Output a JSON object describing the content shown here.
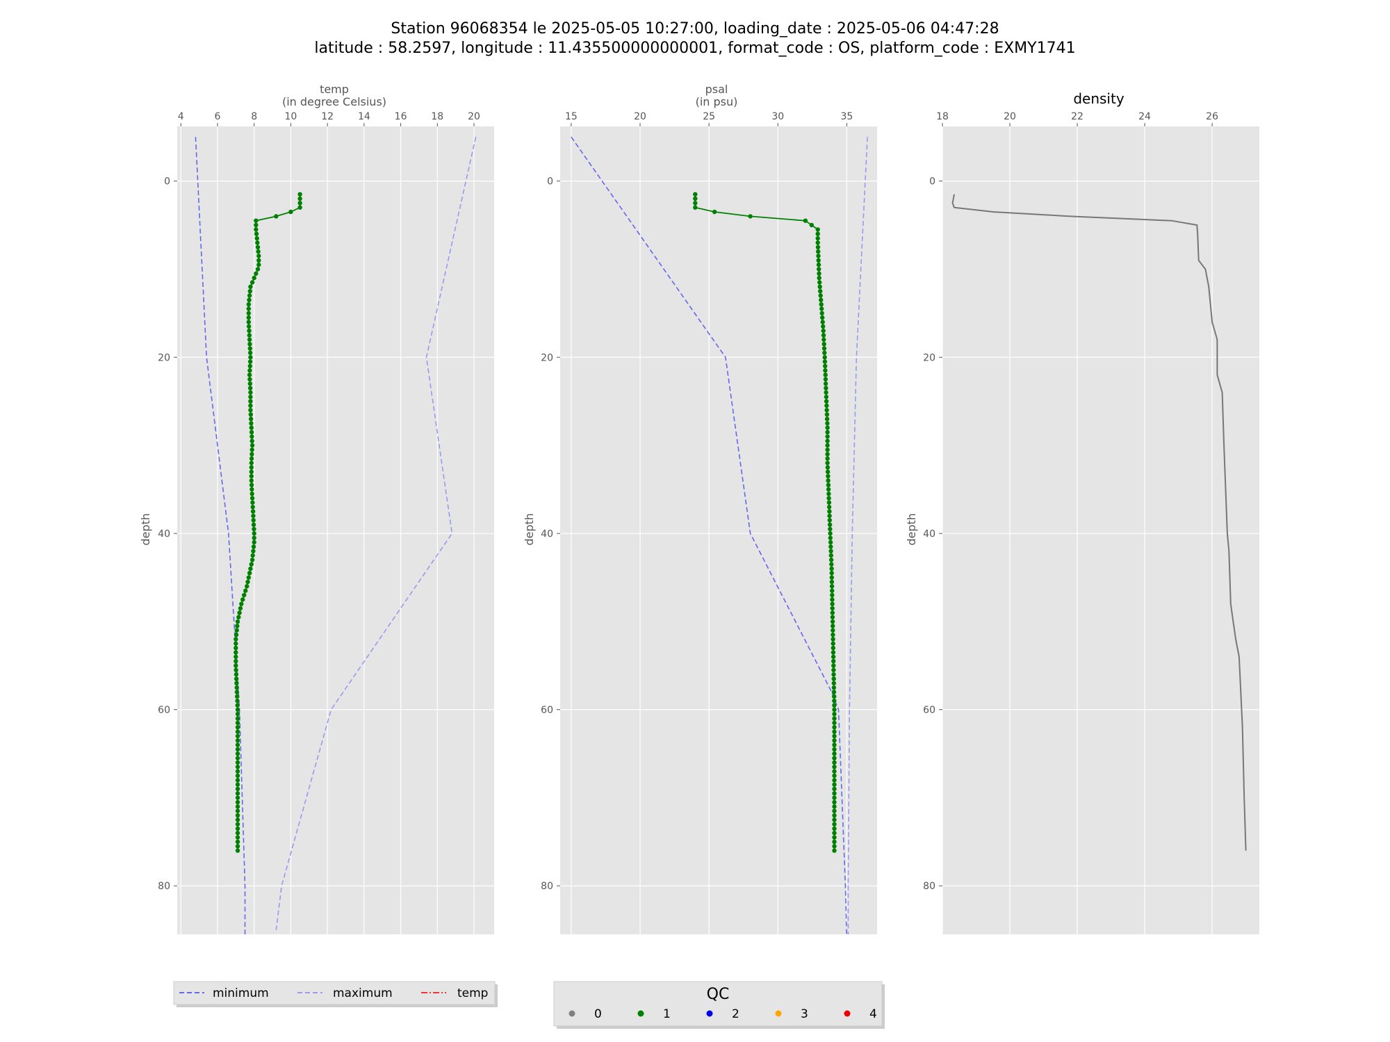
{
  "figure": {
    "title_line1": "Station 96068354 le 2025-05-05 10:27:00, loading_date : 2025-05-06 04:47:28",
    "title_line2": "latitude : 58.2597, longitude : 11.435500000000001, format_code : OS, platform_code : EXMY1741"
  },
  "colors": {
    "panel_bg": "#e5e5e5",
    "grid": "#ffffff",
    "minimum": "#6666ee",
    "maximum": "#9999ee",
    "qc1": "#008000",
    "density": "#777777"
  },
  "legend_series": {
    "items": [
      {
        "label": "minimum",
        "style": "dashed",
        "color": "#6666ee"
      },
      {
        "label": "maximum",
        "style": "dashed",
        "color": "#9999ee"
      },
      {
        "label": "temp",
        "style": "dashdot",
        "color": "#ee3333"
      }
    ]
  },
  "legend_qc": {
    "title": "QC",
    "items": [
      {
        "label": "0",
        "color": "#808080"
      },
      {
        "label": "1",
        "color": "#008000"
      },
      {
        "label": "2",
        "color": "#0000ee"
      },
      {
        "label": "3",
        "color": "#ffa500"
      },
      {
        "label": "4",
        "color": "#ee0000"
      }
    ]
  },
  "chart_data": [
    {
      "type": "line",
      "title_line1": "temp",
      "title_line2": "(in degree Celsius)",
      "ylabel": "depth",
      "xlim": [
        3.8,
        21.1
      ],
      "ylim": [
        85.5,
        -6.2
      ],
      "xticks": [
        4,
        6,
        8,
        10,
        12,
        14,
        16,
        18,
        20
      ],
      "yticks": [
        0,
        20,
        40,
        60,
        80
      ],
      "grid": true,
      "series": [
        {
          "role": "minimum",
          "x": [
            4.8,
            5.4,
            6.6,
            7.2,
            7.5,
            7.5
          ],
          "y": [
            -5,
            20,
            40,
            60,
            80,
            86
          ]
        },
        {
          "role": "maximum",
          "x": [
            20.1,
            17.4,
            18.8,
            12.2,
            9.5,
            9.2
          ],
          "y": [
            -5,
            20,
            40,
            60,
            80,
            85
          ]
        },
        {
          "role": "measured",
          "x": [
            10.5,
            10.5,
            10.5,
            10.0,
            9.2,
            8.1,
            8.1,
            8.15,
            8.2,
            8.25,
            8.25,
            8.2,
            8.0,
            7.8,
            7.7,
            7.7,
            7.75,
            7.8,
            7.75,
            7.8,
            7.8,
            7.85,
            7.9,
            7.85,
            7.85,
            7.9,
            7.95,
            8.0,
            8.0,
            7.95,
            7.9,
            7.8,
            7.6,
            7.3,
            7.1,
            7.0,
            7.0,
            7.1,
            7.1,
            7.1,
            7.1
          ],
          "y": [
            1.5,
            2.5,
            3,
            3.5,
            4,
            4.5,
            5.5,
            6.5,
            7.5,
            8.5,
            9.5,
            10,
            11,
            12,
            14,
            16,
            18,
            20,
            22,
            24,
            26,
            28,
            30,
            32,
            34,
            36,
            38,
            40,
            41,
            42,
            43,
            44,
            46,
            48,
            50,
            52,
            55,
            60,
            65,
            70,
            76
          ]
        }
      ]
    },
    {
      "type": "line",
      "title_line1": "psal",
      "title_line2": "(in psu)",
      "ylabel": "depth",
      "xlim": [
        14.2,
        37.2
      ],
      "ylim": [
        85.5,
        -6.2
      ],
      "xticks": [
        15,
        20,
        25,
        30,
        35
      ],
      "yticks": [
        0,
        20,
        40,
        60,
        80
      ],
      "grid": true,
      "series": [
        {
          "role": "minimum",
          "x": [
            15.0,
            26.2,
            28.0,
            33.9,
            34.4,
            34.9,
            35.0
          ],
          "y": [
            -5,
            20,
            40,
            58,
            60,
            80,
            86
          ]
        },
        {
          "role": "maximum",
          "x": [
            36.5,
            35.7,
            35.4,
            35.2,
            35.1,
            35.1
          ],
          "y": [
            -5,
            20,
            40,
            60,
            80,
            86
          ]
        },
        {
          "role": "measured",
          "x": [
            24.0,
            24.0,
            24.0,
            25.4,
            28.0,
            32.0,
            32.9,
            32.9,
            32.95,
            33.0,
            33.1,
            33.2,
            33.3,
            33.4,
            33.5,
            33.6,
            33.6,
            33.7,
            33.8,
            33.9,
            33.95,
            34.0,
            34.05,
            34.1,
            34.1,
            34.1,
            34.1,
            34.1
          ],
          "y": [
            1.5,
            2.5,
            3,
            3.5,
            4,
            4.5,
            5.5,
            7,
            9,
            11,
            13,
            15,
            17,
            20,
            24,
            28,
            32,
            36,
            40,
            44,
            48,
            52,
            56,
            60,
            65,
            70,
            74,
            76
          ]
        }
      ]
    },
    {
      "type": "line",
      "title_line1": "density",
      "ylabel": "depth",
      "xlim": [
        18.0,
        27.4
      ],
      "ylim": [
        85.5,
        -6.2
      ],
      "xticks": [
        18,
        20,
        22,
        24,
        26
      ],
      "yticks": [
        0,
        20,
        40,
        60,
        80
      ],
      "grid": true,
      "series": [
        {
          "role": "density",
          "x": [
            18.35,
            18.3,
            18.35,
            19.5,
            21.8,
            24.8,
            25.55,
            25.57,
            25.6,
            25.8,
            25.9,
            26.0,
            26.15,
            26.15,
            26.3,
            26.35,
            26.45,
            26.5,
            26.55,
            26.7,
            26.8,
            26.85,
            26.9,
            26.95,
            27.0
          ],
          "y": [
            1.5,
            2.5,
            3,
            3.5,
            4,
            4.5,
            5,
            6,
            9,
            10,
            12,
            16,
            18,
            22,
            24,
            30,
            40,
            42,
            48,
            52,
            54,
            58,
            62,
            70,
            76
          ]
        }
      ]
    }
  ]
}
